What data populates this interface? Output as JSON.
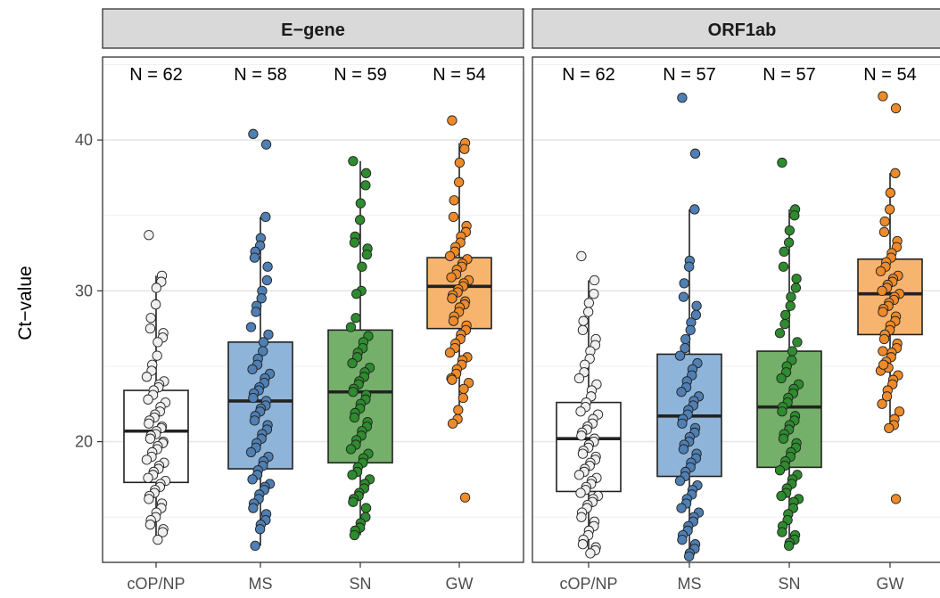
{
  "chart_data": {
    "type": "box",
    "ylabel": "Ct−value",
    "ylim": [
      12,
      45.5
    ],
    "yticks": [
      20,
      30,
      40
    ],
    "categories": [
      "cOP/NP",
      "MS",
      "SN",
      "GW"
    ],
    "colors": {
      "cOP/NP": "#ffffff",
      "MS": "#8fb4d9",
      "SN": "#74b06a",
      "GW": "#f7b46e"
    },
    "point_colors": {
      "cOP/NP": "#f0f0f0",
      "MS": "#4f7fb3",
      "SN": "#2e8b2e",
      "GW": "#ee8a2a"
    },
    "panels": [
      {
        "title": "E−gene",
        "n_labels": [
          "N = 62",
          "N = 58",
          "N = 59",
          "N = 54"
        ],
        "groups": [
          {
            "category": "cOP/NP",
            "q1": 17.3,
            "median": 20.7,
            "q3": 23.4,
            "whisker_low": 13.5,
            "whisker_high": 31.0,
            "points": [
              33.7,
              31.0,
              30.6,
              30.2,
              29.1,
              28.2,
              27.5,
              27.2,
              26.9,
              26.6,
              25.7,
              25.1,
              24.7,
              24.3,
              24.0,
              23.8,
              23.6,
              23.4,
              23.1,
              22.8,
              22.6,
              22.3,
              22.0,
              21.8,
              21.6,
              21.4,
              21.2,
              21.0,
              20.9,
              20.7,
              20.5,
              20.4,
              20.2,
              20.0,
              19.9,
              19.7,
              19.5,
              19.3,
              19.0,
              18.8,
              18.6,
              18.4,
              18.2,
              18.0,
              17.8,
              17.6,
              17.4,
              17.2,
              17.0,
              16.8,
              16.6,
              16.4,
              16.2,
              15.9,
              15.6,
              15.3,
              15.0,
              14.8,
              14.5,
              14.2,
              14.0,
              13.5
            ]
          },
          {
            "category": "MS",
            "q1": 18.2,
            "median": 22.7,
            "q3": 26.6,
            "whisker_low": 13.1,
            "whisker_high": 34.9,
            "points": [
              40.4,
              39.7,
              34.9,
              33.5,
              33.0,
              32.6,
              32.2,
              31.6,
              30.7,
              30.0,
              29.5,
              29.0,
              28.6,
              27.6,
              27.1,
              26.6,
              26.0,
              25.5,
              25.1,
              24.8,
              24.5,
              24.2,
              23.9,
              23.6,
              23.4,
              23.2,
              22.9,
              22.7,
              22.4,
              22.2,
              22.0,
              21.7,
              21.4,
              21.1,
              20.8,
              20.5,
              20.2,
              19.9,
              19.6,
              19.3,
              19.0,
              18.7,
              18.4,
              18.1,
              17.8,
              17.5,
              17.2,
              17.0,
              16.8,
              16.5,
              16.2,
              15.9,
              15.6,
              15.2,
              14.8,
              14.5,
              14.2,
              13.1
            ]
          },
          {
            "category": "SN",
            "q1": 18.6,
            "median": 23.3,
            "q3": 27.4,
            "whisker_low": 13.8,
            "whisker_high": 38.6,
            "points": [
              38.6,
              37.8,
              37.0,
              35.8,
              34.7,
              33.6,
              33.2,
              32.8,
              32.4,
              31.6,
              30.0,
              29.8,
              28.2,
              27.6,
              27.0,
              26.6,
              26.2,
              25.9,
              25.6,
              25.2,
              24.9,
              24.6,
              24.3,
              24.0,
              23.8,
              23.5,
              23.3,
              23.1,
              22.8,
              22.5,
              22.2,
              21.9,
              21.6,
              21.3,
              21.0,
              20.7,
              20.4,
              20.1,
              19.8,
              19.5,
              19.2,
              18.9,
              18.6,
              18.3,
              18.0,
              17.8,
              17.5,
              17.2,
              16.9,
              16.6,
              16.4,
              16.2,
              16.0,
              15.6,
              15.0,
              14.6,
              14.3,
              14.1,
              13.8
            ]
          },
          {
            "category": "GW",
            "q1": 27.5,
            "median": 30.3,
            "q3": 32.2,
            "whisker_low": 21.2,
            "whisker_high": 39.8,
            "points": [
              41.3,
              39.8,
              39.4,
              38.5,
              37.2,
              36.0,
              34.9,
              34.3,
              33.9,
              33.6,
              33.2,
              32.9,
              32.6,
              32.3,
              32.1,
              31.8,
              31.6,
              31.4,
              31.1,
              30.9,
              30.7,
              30.5,
              30.3,
              30.1,
              29.9,
              29.7,
              29.5,
              29.3,
              29.1,
              28.9,
              28.6,
              28.3,
              28.0,
              27.7,
              27.4,
              27.1,
              26.8,
              26.5,
              26.2,
              25.9,
              25.6,
              25.4,
              25.1,
              24.8,
              24.5,
              24.2,
              23.9,
              23.5,
              22.9,
              22.1,
              21.5,
              21.2,
              24.1,
              16.3
            ]
          }
        ]
      },
      {
        "title": "ORF1ab",
        "n_labels": [
          "N = 62",
          "N = 57",
          "N = 57",
          "N = 54"
        ],
        "groups": [
          {
            "category": "cOP/NP",
            "q1": 16.7,
            "median": 20.2,
            "q3": 22.6,
            "whisker_low": 12.6,
            "whisker_high": 30.7,
            "points": [
              32.3,
              30.7,
              29.8,
              29.2,
              28.6,
              28.0,
              27.4,
              26.8,
              26.4,
              26.0,
              25.5,
              25.1,
              24.6,
              24.2,
              23.8,
              23.4,
              23.0,
              22.6,
              22.3,
              22.0,
              21.8,
              21.5,
              21.2,
              21.0,
              20.8,
              20.6,
              20.4,
              20.2,
              20.0,
              19.8,
              19.6,
              19.4,
              19.2,
              19.0,
              18.8,
              18.6,
              18.4,
              18.2,
              18.0,
              17.8,
              17.6,
              17.4,
              17.2,
              17.0,
              16.8,
              16.6,
              16.4,
              16.2,
              16.0,
              15.8,
              15.6,
              15.3,
              15.0,
              14.7,
              14.4,
              14.1,
              13.8,
              13.5,
              13.2,
              13.0,
              12.8,
              12.6
            ]
          },
          {
            "category": "MS",
            "q1": 17.7,
            "median": 21.7,
            "q3": 25.8,
            "whisker_low": 12.4,
            "whisker_high": 35.4,
            "points": [
              42.8,
              39.1,
              35.4,
              32.0,
              31.6,
              30.5,
              29.6,
              29.0,
              28.4,
              27.9,
              27.4,
              26.8,
              26.2,
              25.7,
              25.2,
              24.8,
              24.4,
              24.0,
              23.6,
              23.3,
              23.0,
              22.7,
              22.4,
              22.1,
              21.8,
              21.5,
              21.2,
              20.9,
              20.6,
              20.3,
              20.0,
              19.8,
              19.5,
              19.2,
              18.9,
              18.6,
              18.3,
              18.0,
              17.7,
              17.4,
              17.1,
              16.8,
              16.5,
              16.2,
              15.9,
              15.6,
              15.3,
              15.0,
              14.7,
              14.4,
              14.1,
              13.8,
              13.5,
              13.2,
              12.9,
              12.6,
              12.4
            ]
          },
          {
            "category": "SN",
            "q1": 18.3,
            "median": 22.3,
            "q3": 26.0,
            "whisker_low": 13.1,
            "whisker_high": 35.4,
            "points": [
              38.5,
              35.4,
              35.0,
              34.0,
              33.2,
              32.6,
              31.6,
              30.8,
              30.2,
              29.6,
              29.0,
              28.4,
              27.8,
              27.2,
              26.6,
              26.0,
              25.4,
              25.0,
              24.6,
              24.2,
              23.8,
              23.5,
              23.2,
              22.9,
              22.6,
              22.3,
              22.0,
              21.7,
              21.4,
              21.1,
              20.8,
              20.5,
              20.2,
              19.9,
              19.6,
              19.3,
              19.0,
              18.7,
              18.4,
              18.1,
              17.8,
              17.5,
              17.2,
              16.9,
              16.6,
              16.4,
              16.2,
              16.0,
              15.6,
              15.2,
              14.8,
              14.4,
              14.0,
              13.8,
              13.5,
              13.3,
              13.1
            ]
          },
          {
            "category": "GW",
            "q1": 27.1,
            "median": 29.8,
            "q3": 32.1,
            "whisker_low": 20.9,
            "whisker_high": 37.8,
            "points": [
              42.9,
              42.1,
              37.8,
              36.5,
              35.4,
              34.6,
              33.9,
              33.3,
              32.9,
              32.5,
              32.2,
              31.9,
              31.6,
              31.3,
              31.0,
              30.8,
              30.6,
              30.4,
              30.2,
              30.0,
              29.8,
              29.6,
              29.4,
              29.2,
              29.0,
              28.8,
              28.6,
              28.3,
              28.0,
              27.7,
              27.4,
              27.1,
              26.8,
              26.5,
              26.2,
              25.9,
              25.6,
              25.3,
              25.0,
              24.7,
              24.4,
              24.1,
              23.8,
              23.4,
              23.0,
              22.5,
              22.0,
              21.5,
              21.1,
              20.9,
              24.9,
              25.1,
              26.0,
              16.2
            ]
          }
        ]
      }
    ]
  }
}
